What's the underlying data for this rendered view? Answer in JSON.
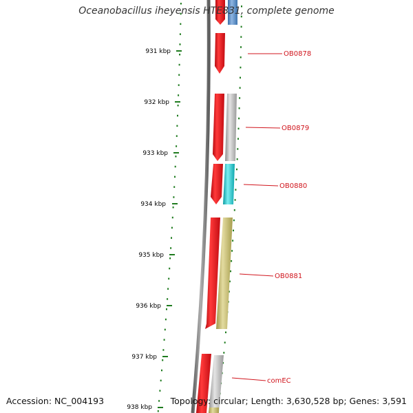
{
  "title": "Oceanobacillus iheyensis HTE831, complete genome",
  "footer": {
    "accession": "Accession: NC_004193",
    "topology": "Topology: circular; Length: 3,630,528 bp; Genes: 3,591"
  },
  "ruler_ticks": [
    "931 kbp",
    "932 kbp",
    "933 kbp",
    "934 kbp",
    "935 kbp",
    "936 kbp",
    "937 kbp",
    "938 kbp"
  ],
  "gene_labels": [
    "OB0878",
    "OB0879",
    "OB0880",
    "OB0881",
    "comEC"
  ],
  "colors": {
    "backbone": "#7a7a7a",
    "forward_gene": "#e8141c",
    "ruler": "#1e7b1e",
    "label": "#d0141c",
    "gene_blue": "#5b8fc9",
    "gene_gray": "#b8b8b8",
    "gene_cyan": "#19c9cf",
    "gene_olive": "#c2b86a"
  }
}
